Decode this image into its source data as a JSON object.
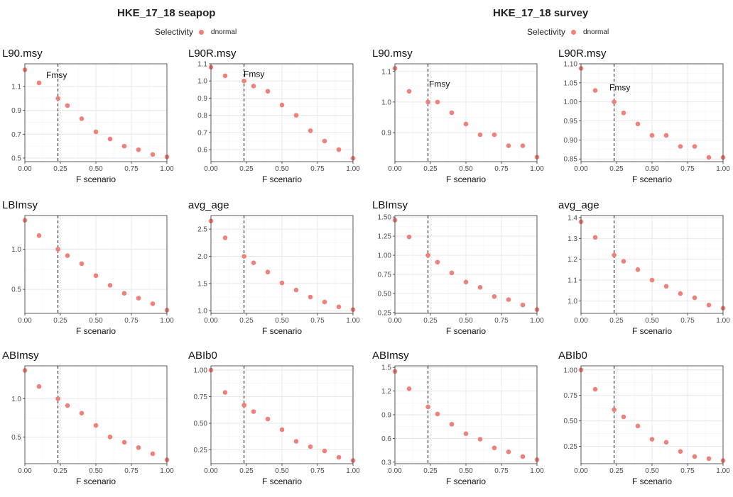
{
  "groups": [
    {
      "title": "HKE_17_18 seapop",
      "legend_title": "Selectivity",
      "legend_label": "dnormal"
    },
    {
      "title": "HKE_17_18 survey",
      "legend_title": "Selectivity",
      "legend_label": "dnormal"
    }
  ],
  "colors": {
    "point": "#F0817A",
    "panel_border": "#333333",
    "grid_major": "#e6e6e6",
    "grid_minor": "#f3f3f3",
    "vline": "#222222"
  },
  "chart_data": [
    {
      "type": "scatter",
      "group": "HKE_17_18 seapop",
      "title": "L90.msy",
      "xlabel": "F scenario",
      "x": [
        0.0,
        0.1,
        0.233,
        0.3,
        0.4,
        0.5,
        0.6,
        0.7,
        0.8,
        0.9,
        1.0
      ],
      "y": [
        1.24,
        1.13,
        1.0,
        0.94,
        0.83,
        0.72,
        0.66,
        0.6,
        0.57,
        0.53,
        0.51
      ],
      "xlim": [
        0,
        1
      ],
      "ylim": [
        0.47,
        1.29
      ],
      "xticks": [
        0,
        0.25,
        0.5,
        0.75,
        1
      ],
      "yticks": [
        0.5,
        0.7,
        0.9,
        1.1
      ],
      "xtick_labels": [
        "0.00",
        "0.25",
        "0.50",
        "0.75",
        "1.00"
      ],
      "ytick_labels": [
        "0.5",
        "0.7",
        "0.9",
        "1.1"
      ],
      "vline": 0.233,
      "annotation": {
        "text": "Fmsy",
        "x": 0.15,
        "y": 1.17
      },
      "grid": true
    },
    {
      "type": "scatter",
      "group": "HKE_17_18 seapop",
      "title": "L90R.msy",
      "xlabel": "F scenario",
      "x": [
        0.0,
        0.1,
        0.233,
        0.3,
        0.4,
        0.5,
        0.6,
        0.7,
        0.8,
        0.9,
        1.0
      ],
      "y": [
        1.08,
        1.03,
        1.0,
        0.97,
        0.94,
        0.86,
        0.8,
        0.71,
        0.65,
        0.6,
        0.55
      ],
      "xlim": [
        0,
        1
      ],
      "ylim": [
        0.53,
        1.1
      ],
      "xticks": [
        0,
        0.25,
        0.5,
        0.75,
        1
      ],
      "yticks": [
        0.6,
        0.7,
        0.8,
        0.9,
        1.0,
        1.1
      ],
      "xtick_labels": [
        "0.00",
        "0.25",
        "0.50",
        "0.75",
        "1.00"
      ],
      "ytick_labels": [
        "0.6",
        "0.7",
        "0.8",
        "0.9",
        "1.0",
        "1.1"
      ],
      "vline": 0.233,
      "annotation": {
        "text": "Fmsy",
        "x": 0.23,
        "y": 1.023
      },
      "grid": true
    },
    {
      "type": "scatter",
      "group": "HKE_17_18 survey",
      "title": "L90.msy",
      "xlabel": "F scenario",
      "x": [
        0.0,
        0.1,
        0.233,
        0.3,
        0.4,
        0.5,
        0.6,
        0.7,
        0.8,
        0.9,
        1.0
      ],
      "y": [
        1.11,
        1.035,
        1.0,
        1.0,
        0.965,
        0.928,
        0.893,
        0.893,
        0.857,
        0.857,
        0.82
      ],
      "xlim": [
        0,
        1
      ],
      "ylim": [
        0.805,
        1.125
      ],
      "xticks": [
        0,
        0.25,
        0.5,
        0.75,
        1
      ],
      "yticks": [
        0.9,
        1.0,
        1.1
      ],
      "xtick_labels": [
        "0.00",
        "0.25",
        "0.50",
        "0.75",
        "1.00"
      ],
      "ytick_labels": [
        "0.9",
        "1.0",
        "1.1"
      ],
      "vline": 0.233,
      "annotation": {
        "text": "Fmsy",
        "x": 0.24,
        "y": 1.05
      },
      "grid": true
    },
    {
      "type": "scatter",
      "group": "HKE_17_18 survey",
      "title": "L90R.msy",
      "xlabel": "F scenario",
      "x": [
        0.0,
        0.1,
        0.233,
        0.3,
        0.4,
        0.5,
        0.6,
        0.7,
        0.8,
        0.9,
        1.0
      ],
      "y": [
        1.088,
        1.03,
        1.0,
        0.971,
        0.942,
        0.912,
        0.912,
        0.883,
        0.883,
        0.854,
        0.854
      ],
      "xlim": [
        0,
        1
      ],
      "ylim": [
        0.843,
        1.1
      ],
      "xticks": [
        0,
        0.25,
        0.5,
        0.75,
        1
      ],
      "yticks": [
        0.85,
        0.9,
        0.95,
        1.0,
        1.05,
        1.1
      ],
      "xtick_labels": [
        "0.00",
        "0.25",
        "0.50",
        "0.75",
        "1.00"
      ],
      "ytick_labels": [
        "0.85",
        "0.90",
        "0.95",
        "1.00",
        "1.05",
        "1.10"
      ],
      "vline": 0.233,
      "annotation": {
        "text": "Fmsy",
        "x": 0.2,
        "y": 1.03
      },
      "grid": true
    },
    {
      "type": "scatter",
      "group": "HKE_17_18 seapop",
      "title": "LBImsy",
      "xlabel": "F scenario",
      "x": [
        0.0,
        0.1,
        0.233,
        0.3,
        0.4,
        0.5,
        0.6,
        0.7,
        0.8,
        0.9,
        1.0
      ],
      "y": [
        1.36,
        1.17,
        1.0,
        0.92,
        0.82,
        0.67,
        0.55,
        0.45,
        0.39,
        0.32,
        0.24
      ],
      "xlim": [
        0,
        1
      ],
      "ylim": [
        0.2,
        1.42
      ],
      "xticks": [
        0,
        0.25,
        0.5,
        0.75,
        1
      ],
      "yticks": [
        0.5,
        1.0
      ],
      "xtick_labels": [
        "0.00",
        "0.25",
        "0.50",
        "0.75",
        "1.00"
      ],
      "ytick_labels": [
        "0.5",
        "1.0"
      ],
      "vline": 0.233,
      "grid": true
    },
    {
      "type": "scatter",
      "group": "HKE_17_18 seapop",
      "title": "avg_age",
      "xlabel": "F scenario",
      "x": [
        0.0,
        0.1,
        0.233,
        0.3,
        0.4,
        0.5,
        0.6,
        0.7,
        0.8,
        0.9,
        1.0
      ],
      "y": [
        2.65,
        2.34,
        2.0,
        1.88,
        1.71,
        1.51,
        1.38,
        1.25,
        1.16,
        1.07,
        1.02
      ],
      "xlim": [
        0,
        1
      ],
      "ylim": [
        0.95,
        2.75
      ],
      "xticks": [
        0,
        0.25,
        0.5,
        0.75,
        1
      ],
      "yticks": [
        1.0,
        1.5,
        2.0,
        2.5
      ],
      "xtick_labels": [
        "0.00",
        "0.25",
        "0.50",
        "0.75",
        "1.00"
      ],
      "ytick_labels": [
        "1.0",
        "1.5",
        "2.0",
        "2.5"
      ],
      "vline": 0.233,
      "grid": true
    },
    {
      "type": "scatter",
      "group": "HKE_17_18 survey",
      "title": "LBImsy",
      "xlabel": "F scenario",
      "x": [
        0.0,
        0.1,
        0.233,
        0.3,
        0.4,
        0.5,
        0.6,
        0.7,
        0.8,
        0.9,
        1.0
      ],
      "y": [
        1.46,
        1.24,
        1.0,
        0.91,
        0.77,
        0.65,
        0.58,
        0.46,
        0.42,
        0.35,
        0.29
      ],
      "xlim": [
        0,
        1
      ],
      "ylim": [
        0.24,
        1.52
      ],
      "xticks": [
        0,
        0.25,
        0.5,
        0.75,
        1
      ],
      "yticks": [
        0.25,
        0.5,
        0.75,
        1.0,
        1.25,
        1.5
      ],
      "xtick_labels": [
        "0.00",
        "0.25",
        "0.50",
        "0.75",
        "1.00"
      ],
      "ytick_labels": [
        "0.25",
        "0.50",
        "0.75",
        "1.00",
        "1.25",
        "1.50"
      ],
      "vline": 0.233,
      "grid": true
    },
    {
      "type": "scatter",
      "group": "HKE_17_18 survey",
      "title": "avg_age",
      "xlabel": "F scenario",
      "x": [
        0.0,
        0.1,
        0.233,
        0.3,
        0.4,
        0.5,
        0.6,
        0.7,
        0.8,
        0.9,
        1.0
      ],
      "y": [
        1.38,
        1.305,
        1.22,
        1.19,
        1.15,
        1.1,
        1.07,
        1.035,
        1.015,
        0.98,
        0.965
      ],
      "xlim": [
        0,
        1
      ],
      "ylim": [
        0.94,
        1.41
      ],
      "xticks": [
        0,
        0.25,
        0.5,
        0.75,
        1
      ],
      "yticks": [
        1.0,
        1.1,
        1.2,
        1.3,
        1.4
      ],
      "xtick_labels": [
        "0.00",
        "0.25",
        "0.50",
        "0.75",
        "1.00"
      ],
      "ytick_labels": [
        "1.0",
        "1.1",
        "1.2",
        "1.3",
        "1.4"
      ],
      "vline": 0.233,
      "grid": true
    },
    {
      "type": "scatter",
      "group": "HKE_17_18 seapop",
      "title": "ABImsy",
      "xlabel": "F scenario",
      "x": [
        0.0,
        0.1,
        0.233,
        0.3,
        0.4,
        0.5,
        0.6,
        0.7,
        0.8,
        0.9,
        1.0
      ],
      "y": [
        1.37,
        1.16,
        1.0,
        0.91,
        0.81,
        0.65,
        0.5,
        0.43,
        0.36,
        0.28,
        0.2
      ],
      "xlim": [
        0,
        1
      ],
      "ylim": [
        0.15,
        1.43
      ],
      "xticks": [
        0,
        0.25,
        0.5,
        0.75,
        1
      ],
      "yticks": [
        0.5,
        1.0
      ],
      "xtick_labels": [
        "0.00",
        "0.25",
        "0.50",
        "0.75",
        "1.00"
      ],
      "ytick_labels": [
        "0.5",
        "1.0"
      ],
      "vline": 0.233,
      "grid": true
    },
    {
      "type": "scatter",
      "group": "HKE_17_18 seapop",
      "title": "ABIb0",
      "xlabel": "F scenario",
      "x": [
        0.0,
        0.1,
        0.233,
        0.3,
        0.4,
        0.5,
        0.6,
        0.7,
        0.8,
        0.9,
        1.0
      ],
      "y": [
        1.0,
        0.79,
        0.67,
        0.61,
        0.54,
        0.44,
        0.33,
        0.28,
        0.24,
        0.18,
        0.15
      ],
      "xlim": [
        0,
        1
      ],
      "ylim": [
        0.12,
        1.04
      ],
      "xticks": [
        0,
        0.25,
        0.5,
        0.75,
        1
      ],
      "yticks": [
        0.25,
        0.5,
        0.75,
        1.0
      ],
      "xtick_labels": [
        "0.00",
        "0.25",
        "0.50",
        "0.75",
        "1.00"
      ],
      "ytick_labels": [
        "0.25",
        "0.50",
        "0.75",
        "1.00"
      ],
      "vline": 0.233,
      "grid": true
    },
    {
      "type": "scatter",
      "group": "HKE_17_18 survey",
      "title": "ABImsy",
      "xlabel": "F scenario",
      "x": [
        0.0,
        0.1,
        0.233,
        0.3,
        0.4,
        0.5,
        0.6,
        0.7,
        0.8,
        0.9,
        1.0
      ],
      "y": [
        1.45,
        1.23,
        1.0,
        0.91,
        0.78,
        0.66,
        0.59,
        0.48,
        0.43,
        0.37,
        0.33
      ],
      "xlim": [
        0,
        1
      ],
      "ylim": [
        0.28,
        1.52
      ],
      "xticks": [
        0,
        0.25,
        0.5,
        0.75,
        1
      ],
      "yticks": [
        0.3,
        0.6,
        0.9,
        1.2,
        1.5
      ],
      "xtick_labels": [
        "0.00",
        "0.25",
        "0.50",
        "0.75",
        "1.00"
      ],
      "ytick_labels": [
        "0.3",
        "0.6",
        "0.9",
        "1.2",
        "1.5"
      ],
      "vline": 0.233,
      "grid": true
    },
    {
      "type": "scatter",
      "group": "HKE_17_18 survey",
      "title": "ABIb0",
      "xlabel": "F scenario",
      "x": [
        0.0,
        0.1,
        0.233,
        0.3,
        0.4,
        0.5,
        0.6,
        0.7,
        0.8,
        0.9,
        1.0
      ],
      "y": [
        1.0,
        0.81,
        0.61,
        0.54,
        0.45,
        0.32,
        0.29,
        0.2,
        0.15,
        0.13,
        0.11
      ],
      "xlim": [
        0,
        1
      ],
      "ylim": [
        0.08,
        1.04
      ],
      "xticks": [
        0,
        0.25,
        0.5,
        0.75,
        1
      ],
      "yticks": [
        0.25,
        0.5,
        0.75,
        1.0
      ],
      "xtick_labels": [
        "0.00",
        "0.25",
        "0.50",
        "0.75",
        "1.00"
      ],
      "ytick_labels": [
        "0.25",
        "0.50",
        "0.75",
        "1.00"
      ],
      "vline": 0.233,
      "grid": true
    }
  ]
}
